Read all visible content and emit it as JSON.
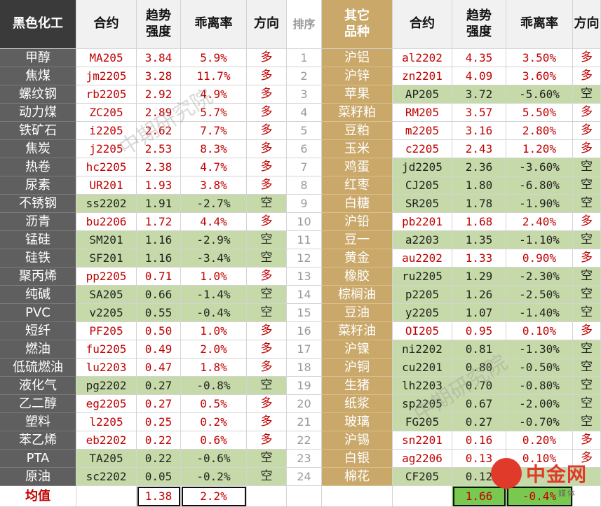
{
  "headers": {
    "sector_left": "黑色化工",
    "contract_left": "合约",
    "trend_left": "趋势\n强度",
    "deviation_left": "乖离率",
    "direction_left": "方向",
    "rank": "排序",
    "sector_right": "其它\n品种",
    "contract_right": "合约",
    "trend_right": "趋势\n强度",
    "deviation_right": "乖离率",
    "direction_right": "方向"
  },
  "left_rows": [
    {
      "name": "甲醇",
      "contract": "MA205",
      "trend": "3.84",
      "deviation": "5.9%",
      "direction": "多",
      "highlight": false
    },
    {
      "name": "焦煤",
      "contract": "jm2205",
      "trend": "3.28",
      "deviation": "11.7%",
      "direction": "多",
      "highlight": false
    },
    {
      "name": "螺纹钢",
      "contract": "rb2205",
      "trend": "2.92",
      "deviation": "4.9%",
      "direction": "多",
      "highlight": false
    },
    {
      "name": "动力煤",
      "contract": "ZC205",
      "trend": "2.89",
      "deviation": "5.7%",
      "direction": "多",
      "highlight": false
    },
    {
      "name": "铁矿石",
      "contract": "i2205",
      "trend": "2.62",
      "deviation": "7.7%",
      "direction": "多",
      "highlight": false
    },
    {
      "name": "焦炭",
      "contract": "j2205",
      "trend": "2.53",
      "deviation": "8.3%",
      "direction": "多",
      "highlight": false
    },
    {
      "name": "热卷",
      "contract": "hc2205",
      "trend": "2.38",
      "deviation": "4.7%",
      "direction": "多",
      "highlight": false
    },
    {
      "name": "尿素",
      "contract": "UR201",
      "trend": "1.93",
      "deviation": "3.8%",
      "direction": "多",
      "highlight": false
    },
    {
      "name": "不锈钢",
      "contract": "ss2202",
      "trend": "1.91",
      "deviation": "-2.7%",
      "direction": "空",
      "highlight": true
    },
    {
      "name": "沥青",
      "contract": "bu2206",
      "trend": "1.72",
      "deviation": "4.4%",
      "direction": "多",
      "highlight": false
    },
    {
      "name": "锰硅",
      "contract": "SM201",
      "trend": "1.16",
      "deviation": "-2.9%",
      "direction": "空",
      "highlight": true
    },
    {
      "name": "硅铁",
      "contract": "SF201",
      "trend": "1.16",
      "deviation": "-3.4%",
      "direction": "空",
      "highlight": true
    },
    {
      "name": "聚丙烯",
      "contract": "pp2205",
      "trend": "0.71",
      "deviation": "1.0%",
      "direction": "多",
      "highlight": false
    },
    {
      "name": "纯碱",
      "contract": "SA205",
      "trend": "0.66",
      "deviation": "-1.4%",
      "direction": "空",
      "highlight": true
    },
    {
      "name": "PVC",
      "contract": "v2205",
      "trend": "0.55",
      "deviation": "-0.4%",
      "direction": "空",
      "highlight": true
    },
    {
      "name": "短纤",
      "contract": "PF205",
      "trend": "0.50",
      "deviation": "1.0%",
      "direction": "多",
      "highlight": false
    },
    {
      "name": "燃油",
      "contract": "fu2205",
      "trend": "0.49",
      "deviation": "2.0%",
      "direction": "多",
      "highlight": false
    },
    {
      "name": "低硫燃油",
      "contract": "lu2203",
      "trend": "0.47",
      "deviation": "1.8%",
      "direction": "多",
      "highlight": false
    },
    {
      "name": "液化气",
      "contract": "pg2202",
      "trend": "0.27",
      "deviation": "-0.8%",
      "direction": "空",
      "highlight": true
    },
    {
      "name": "乙二醇",
      "contract": "eg2205",
      "trend": "0.27",
      "deviation": "0.5%",
      "direction": "多",
      "highlight": false
    },
    {
      "name": "塑料",
      "contract": "l2205",
      "trend": "0.25",
      "deviation": "0.2%",
      "direction": "多",
      "highlight": false
    },
    {
      "name": "苯乙烯",
      "contract": "eb2202",
      "trend": "0.22",
      "deviation": "0.6%",
      "direction": "多",
      "highlight": false
    },
    {
      "name": "PTA",
      "contract": "TA205",
      "trend": "0.22",
      "deviation": "-0.6%",
      "direction": "空",
      "highlight": true
    },
    {
      "name": "原油",
      "contract": "sc2202",
      "trend": "0.05",
      "deviation": "-0.2%",
      "direction": "空",
      "highlight": true
    }
  ],
  "right_rows": [
    {
      "name": "沪铝",
      "contract": "al2202",
      "trend": "4.35",
      "deviation": "3.50%",
      "direction": "多",
      "highlight": false
    },
    {
      "name": "沪锌",
      "contract": "zn2201",
      "trend": "4.09",
      "deviation": "3.60%",
      "direction": "多",
      "highlight": false
    },
    {
      "name": "苹果",
      "contract": "AP205",
      "trend": "3.72",
      "deviation": "-5.60%",
      "direction": "空",
      "highlight": true
    },
    {
      "name": "菜籽粕",
      "contract": "RM205",
      "trend": "3.57",
      "deviation": "5.50%",
      "direction": "多",
      "highlight": false
    },
    {
      "name": "豆粕",
      "contract": "m2205",
      "trend": "3.16",
      "deviation": "2.80%",
      "direction": "多",
      "highlight": false
    },
    {
      "name": "玉米",
      "contract": "c2205",
      "trend": "2.43",
      "deviation": "1.20%",
      "direction": "多",
      "highlight": false
    },
    {
      "name": "鸡蛋",
      "contract": "jd2205",
      "trend": "2.36",
      "deviation": "-3.60%",
      "direction": "空",
      "highlight": true
    },
    {
      "name": "红枣",
      "contract": "CJ205",
      "trend": "1.80",
      "deviation": "-6.80%",
      "direction": "空",
      "highlight": true
    },
    {
      "name": "白糖",
      "contract": "SR205",
      "trend": "1.78",
      "deviation": "-1.90%",
      "direction": "空",
      "highlight": true
    },
    {
      "name": "沪铅",
      "contract": "pb2201",
      "trend": "1.68",
      "deviation": "2.40%",
      "direction": "多",
      "highlight": false
    },
    {
      "name": "豆一",
      "contract": "a2203",
      "trend": "1.35",
      "deviation": "-1.10%",
      "direction": "空",
      "highlight": true
    },
    {
      "name": "黄金",
      "contract": "au2202",
      "trend": "1.33",
      "deviation": "0.90%",
      "direction": "多",
      "highlight": false
    },
    {
      "name": "橡胶",
      "contract": "ru2205",
      "trend": "1.29",
      "deviation": "-2.30%",
      "direction": "空",
      "highlight": true
    },
    {
      "name": "棕榈油",
      "contract": "p2205",
      "trend": "1.26",
      "deviation": "-2.50%",
      "direction": "空",
      "highlight": true
    },
    {
      "name": "豆油",
      "contract": "y2205",
      "trend": "1.07",
      "deviation": "-1.40%",
      "direction": "空",
      "highlight": true
    },
    {
      "name": "菜籽油",
      "contract": "OI205",
      "trend": "0.95",
      "deviation": "0.10%",
      "direction": "多",
      "highlight": false
    },
    {
      "name": "沪镍",
      "contract": "ni2202",
      "trend": "0.81",
      "deviation": "-1.30%",
      "direction": "空",
      "highlight": true
    },
    {
      "name": "沪铜",
      "contract": "cu2201",
      "trend": "0.80",
      "deviation": "-0.50%",
      "direction": "空",
      "highlight": true
    },
    {
      "name": "生猪",
      "contract": "lh2203",
      "trend": "0.70",
      "deviation": "-0.80%",
      "direction": "空",
      "highlight": true
    },
    {
      "name": "纸浆",
      "contract": "sp2205",
      "trend": "0.67",
      "deviation": "-2.00%",
      "direction": "空",
      "highlight": true
    },
    {
      "name": "玻璃",
      "contract": "FG205",
      "trend": "0.27",
      "deviation": "-0.70%",
      "direction": "空",
      "highlight": true
    },
    {
      "name": "沪锡",
      "contract": "sn2201",
      "trend": "0.16",
      "deviation": "0.20%",
      "direction": "多",
      "highlight": false
    },
    {
      "name": "白银",
      "contract": "ag2206",
      "trend": "0.13",
      "deviation": "0.10%",
      "direction": "多",
      "highlight": false
    },
    {
      "name": "棉花",
      "contract": "CF205",
      "trend": "0.12",
      "deviation": "",
      "direction": "",
      "highlight": true
    }
  ],
  "ranks": [
    "1",
    "2",
    "3",
    "4",
    "5",
    "6",
    "7",
    "8",
    "9",
    "10",
    "11",
    "12",
    "13",
    "14",
    "15",
    "16",
    "17",
    "18",
    "19",
    "20",
    "21",
    "22",
    "23",
    "24"
  ],
  "averages": {
    "label": "均值",
    "left_trend": "1.38",
    "left_deviation": "2.2%",
    "right_trend": "1.66",
    "right_deviation": "-0.4%"
  },
  "watermarks": [
    "中期研究院",
    "中期研究院"
  ],
  "logo": {
    "text": "中金网",
    "sub": "媒体"
  },
  "colors": {
    "dark_header": "#3a3a3a",
    "left_name_bg": "#5f5f5f",
    "gold": "#c9a86a",
    "green": "#c6d9a8",
    "avg_green": "#79c84f",
    "red": "#c00000"
  }
}
